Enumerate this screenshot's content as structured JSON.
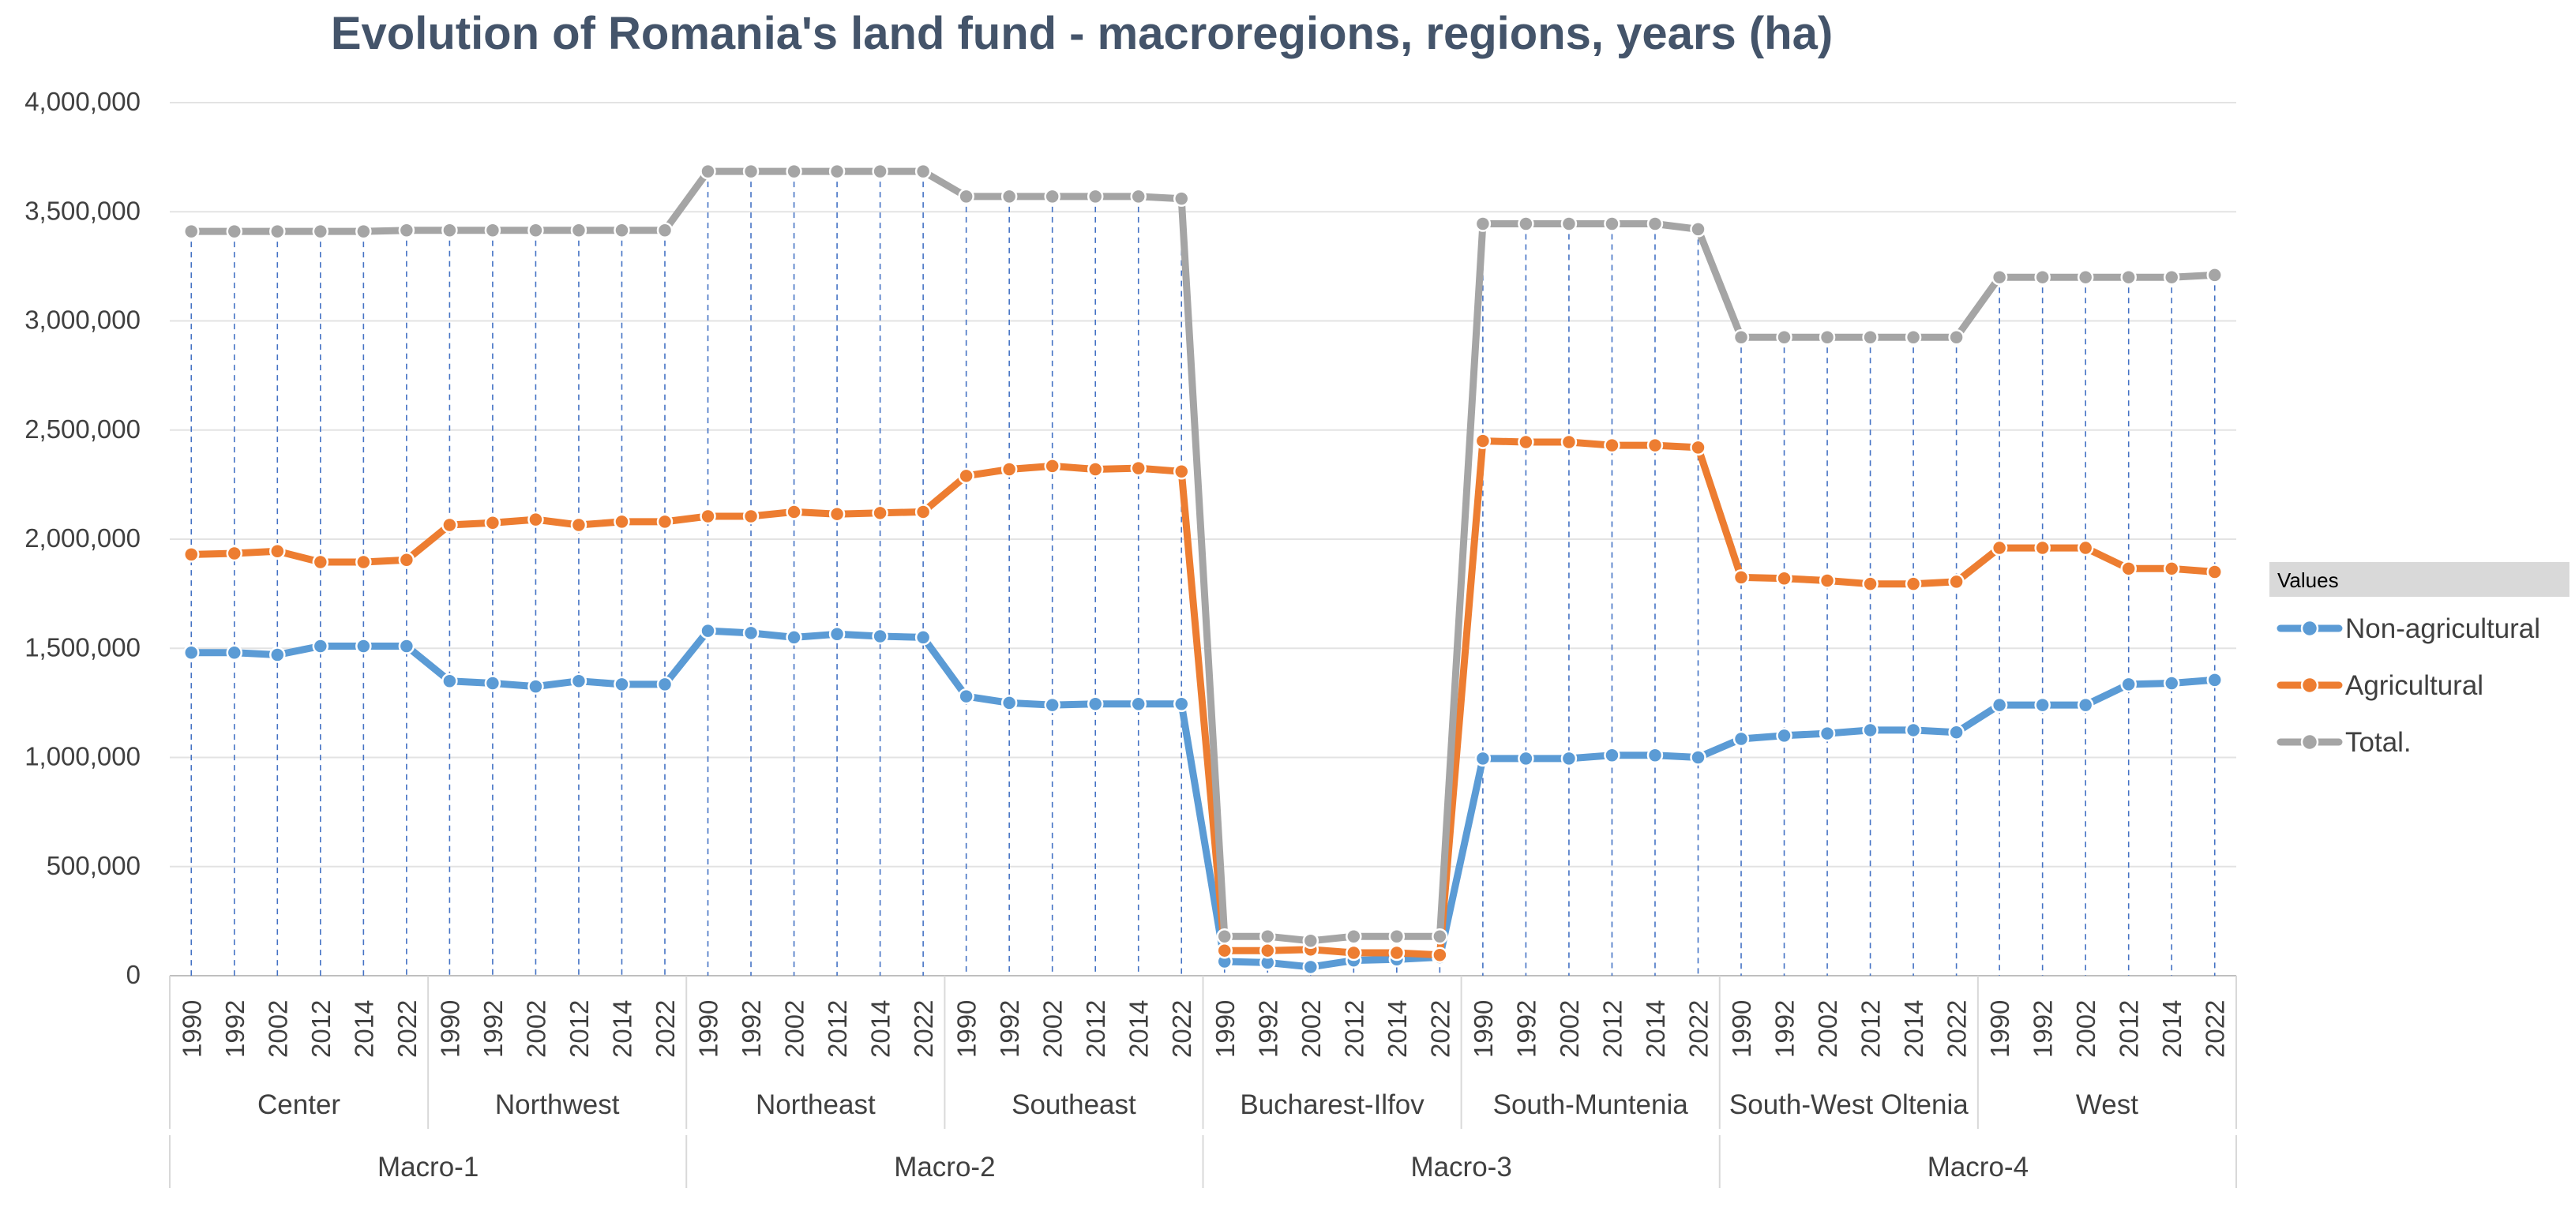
{
  "chart_data": {
    "type": "line",
    "title": "Evolution of Romania's land fund - macroregions, regions, years (ha)",
    "xlabel": "",
    "ylabel": "",
    "ylim": [
      0,
      4000000
    ],
    "yticks": [
      0,
      500000,
      1000000,
      1500000,
      2000000,
      2500000,
      3000000,
      3500000,
      4000000
    ],
    "ytick_labels": [
      "0",
      "500,000",
      "1,000,000",
      "1,500,000",
      "2,000,000",
      "2,500,000",
      "3,000,000",
      "3,500,000",
      "4,000,000"
    ],
    "grid": true,
    "legend_position": "right",
    "legend_title": "Values",
    "years": [
      "1990",
      "1992",
      "2002",
      "2012",
      "2014",
      "2022"
    ],
    "regions": [
      "Center",
      "Northwest",
      "Northeast",
      "Southeast",
      "Bucharest-Ilfov",
      "South-Muntenia",
      "South-West Oltenia",
      "West"
    ],
    "macroregions": [
      {
        "name": "Macro-1",
        "regions": [
          "Center",
          "Northwest"
        ]
      },
      {
        "name": "Macro-2",
        "regions": [
          "Northeast",
          "Southeast"
        ]
      },
      {
        "name": "Macro-3",
        "regions": [
          "Bucharest-Ilfov",
          "South-Muntenia"
        ]
      },
      {
        "name": "Macro-4",
        "regions": [
          "South-West Oltenia",
          "West"
        ]
      }
    ],
    "series": [
      {
        "name": "Non-agricultural",
        "color": "#5B9BD5",
        "values": [
          1480000,
          1480000,
          1470000,
          1510000,
          1510000,
          1510000,
          1350000,
          1340000,
          1325000,
          1350000,
          1335000,
          1335000,
          1580000,
          1570000,
          1550000,
          1565000,
          1555000,
          1550000,
          1280000,
          1250000,
          1240000,
          1245000,
          1245000,
          1245000,
          65000,
          60000,
          40000,
          70000,
          75000,
          85000,
          995000,
          995000,
          995000,
          1010000,
          1010000,
          1000000,
          1085000,
          1100000,
          1110000,
          1125000,
          1125000,
          1115000,
          1240000,
          1240000,
          1240000,
          1335000,
          1340000,
          1355000
        ]
      },
      {
        "name": "Agricultural",
        "color": "#ED7D31",
        "values": [
          1930000,
          1935000,
          1945000,
          1895000,
          1895000,
          1905000,
          2065000,
          2075000,
          2090000,
          2065000,
          2080000,
          2080000,
          2105000,
          2105000,
          2125000,
          2115000,
          2120000,
          2125000,
          2290000,
          2320000,
          2335000,
          2320000,
          2325000,
          2310000,
          115000,
          115000,
          120000,
          105000,
          105000,
          95000,
          2450000,
          2445000,
          2445000,
          2430000,
          2430000,
          2420000,
          1825000,
          1820000,
          1810000,
          1795000,
          1795000,
          1805000,
          1960000,
          1960000,
          1960000,
          1865000,
          1865000,
          1850000
        ]
      },
      {
        "name": "Total.",
        "color": "#A5A5A5",
        "values": [
          3410000,
          3410000,
          3410000,
          3410000,
          3410000,
          3415000,
          3415000,
          3415000,
          3415000,
          3415000,
          3415000,
          3415000,
          3685000,
          3685000,
          3685000,
          3685000,
          3685000,
          3685000,
          3570000,
          3570000,
          3570000,
          3570000,
          3570000,
          3560000,
          180000,
          180000,
          160000,
          180000,
          180000,
          180000,
          3445000,
          3445000,
          3445000,
          3445000,
          3445000,
          3420000,
          2925000,
          2925000,
          2925000,
          2925000,
          2925000,
          2925000,
          3200000,
          3200000,
          3200000,
          3200000,
          3200000,
          3210000
        ]
      }
    ]
  }
}
